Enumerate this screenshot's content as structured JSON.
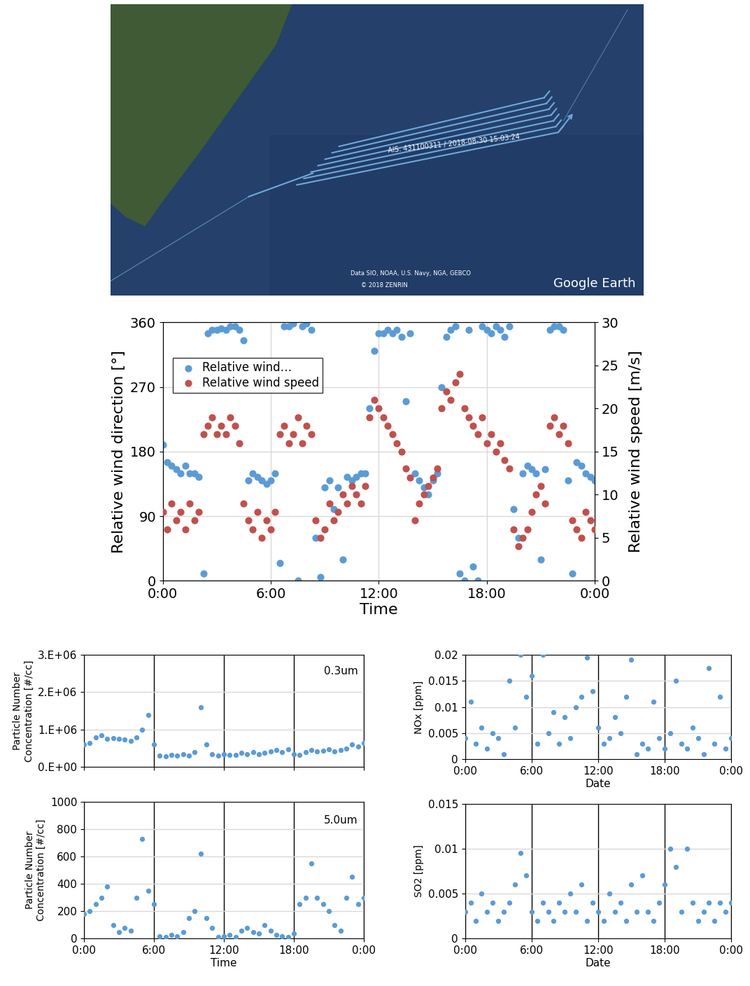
{
  "map": {
    "track_label": "AIS: 431100311 / 2018-08-30 15:03:24",
    "credit": "Data SIO, NOAA, U.S. Navy, NGA, GEBCO",
    "copyright": "© 2018 ZENRIN",
    "logo": "Google Earth"
  },
  "chart_data": [
    {
      "type": "scatter",
      "xlabel": "Time",
      "ylabel": "Relative wind direction [°]",
      "y2label": "Relative wind speed [m/s]",
      "x": [
        0,
        0.25,
        0.5,
        0.75,
        1,
        1.25,
        1.5,
        1.75,
        2,
        2.25,
        2.5,
        2.75,
        3,
        3.25,
        3.5,
        3.75,
        4,
        4.25,
        4.5,
        4.75,
        5,
        5.25,
        5.5,
        5.75,
        6,
        6.25,
        6.5,
        6.75,
        7,
        7.25,
        7.5,
        7.75,
        8,
        8.25,
        8.5,
        8.75,
        9,
        9.25,
        9.5,
        9.75,
        10,
        10.25,
        10.5,
        10.75,
        11,
        11.25,
        11.5,
        11.75,
        12,
        12.25,
        12.5,
        12.75,
        13,
        13.25,
        13.5,
        13.75,
        14,
        14.25,
        14.5,
        14.75,
        15,
        15.25,
        15.5,
        15.75,
        16,
        16.25,
        16.5,
        16.75,
        17,
        17.25,
        17.5,
        17.75,
        18,
        18.25,
        18.5,
        18.75,
        19,
        19.25,
        19.5,
        19.75,
        20,
        20.25,
        20.5,
        20.75,
        21,
        21.25,
        21.5,
        21.75,
        22,
        22.25,
        22.5,
        22.75,
        23,
        23.25,
        23.5,
        23.75,
        24
      ],
      "xlim": [
        0,
        24
      ],
      "xticks": [
        {
          "value": 0,
          "label": "0:00"
        },
        {
          "value": 6,
          "label": "6:00"
        },
        {
          "value": 12,
          "label": "12:00"
        },
        {
          "value": 18,
          "label": "18:00"
        },
        {
          "value": 24,
          "label": "0:00"
        }
      ],
      "ylim": [
        0,
        360
      ],
      "yticks": [
        0,
        90,
        180,
        270,
        360
      ],
      "y2lim": [
        0,
        30
      ],
      "y2ticks": [
        0,
        5,
        10,
        15,
        20,
        25,
        30
      ],
      "grid": true,
      "legend": "upper left",
      "marker": "o",
      "series": [
        {
          "name": "Relative wind…",
          "color": "#5b9bd5",
          "values": [
            190,
            165,
            160,
            155,
            150,
            160,
            150,
            150,
            145,
            10,
            345,
            350,
            350,
            352,
            350,
            355,
            355,
            350,
            335,
            140,
            150,
            145,
            140,
            135,
            140,
            150,
            25,
            355,
            355,
            358,
            0,
            355,
            358,
            350,
            60,
            5,
            130,
            140,
            100,
            130,
            30,
            145,
            140,
            145,
            150,
            150,
            240,
            320,
            345,
            345,
            350,
            345,
            350,
            340,
            250,
            345,
            150,
            140,
            130,
            120,
            140,
            150,
            270,
            340,
            350,
            355,
            10,
            0,
            350,
            20,
            0,
            355,
            350,
            345,
            355,
            350,
            340,
            355,
            100,
            60,
            150,
            160,
            155,
            150,
            30,
            155,
            350,
            355,
            355,
            350,
            140,
            10,
            165,
            160,
            150,
            145,
            140
          ]
        },
        {
          "name": "Relative wind speed",
          "color": "#c0504d",
          "axis": "y2",
          "values": [
            8,
            6,
            9,
            7,
            8,
            6,
            9,
            7,
            8,
            17,
            18,
            19,
            17,
            18,
            17,
            19,
            18,
            16,
            9,
            7,
            6,
            8,
            5,
            7,
            6,
            8,
            17,
            18,
            16,
            17,
            19,
            16,
            18,
            17,
            7,
            5,
            6,
            9,
            7,
            8,
            10,
            9,
            11,
            10,
            9,
            11,
            19,
            21,
            20,
            19,
            18,
            17,
            16,
            15,
            13,
            12,
            7,
            9,
            10,
            11,
            12,
            13,
            20,
            22,
            21,
            23,
            24,
            20,
            19,
            18,
            17,
            19,
            16,
            17,
            15,
            16,
            14,
            13,
            6,
            4,
            5,
            6,
            8,
            10,
            11,
            9,
            18,
            19,
            17,
            18,
            16,
            7,
            6,
            5,
            8,
            7,
            6
          ]
        }
      ]
    },
    {
      "type": "scatter",
      "ylabel": "Particle Number\nConcentration [#/cc]",
      "annotation": "0.3um",
      "x": [
        0,
        0.5,
        1,
        1.5,
        2,
        2.5,
        3,
        3.5,
        4,
        4.5,
        5,
        5.5,
        6,
        6.5,
        7,
        7.5,
        8,
        8.5,
        9,
        9.5,
        10,
        10.5,
        11,
        11.5,
        12,
        12.5,
        13,
        13.5,
        14,
        14.5,
        15,
        15.5,
        16,
        16.5,
        17,
        17.5,
        18,
        18.5,
        19,
        19.5,
        20,
        20.5,
        21,
        21.5,
        22,
        22.5,
        23,
        23.5,
        24
      ],
      "xlim": [
        0,
        24
      ],
      "xticks": [
        {
          "value": 0,
          "label": "0:00"
        },
        {
          "value": 6,
          "label": "6:00"
        },
        {
          "value": 12,
          "label": "12:00"
        },
        {
          "value": 18,
          "label": "18:00"
        },
        {
          "value": 24,
          "label": "0:00"
        }
      ],
      "ylim": [
        0,
        3000000
      ],
      "yticks": [
        {
          "value": 0,
          "label": "0.E+00"
        },
        {
          "value": 1000000,
          "label": "1.E+06"
        },
        {
          "value": 2000000,
          "label": "2.E+06"
        },
        {
          "value": 3000000,
          "label": "3.E+06"
        }
      ],
      "grid": true,
      "tick_labels": "y",
      "marker": "o",
      "series": [
        {
          "color": "#5b9bd5",
          "values": [
            600000,
            650000,
            800000,
            850000,
            750000,
            780000,
            760000,
            740000,
            700000,
            800000,
            1000000,
            1400000,
            600000,
            300000,
            280000,
            320000,
            300000,
            350000,
            300000,
            400000,
            1600000,
            600000,
            350000,
            300000,
            350000,
            320000,
            330000,
            380000,
            350000,
            400000,
            350000,
            380000,
            420000,
            450000,
            400000,
            480000,
            350000,
            320000,
            400000,
            450000,
            420000,
            430000,
            480000,
            420000,
            450000,
            500000,
            600000,
            550000,
            650000
          ]
        }
      ]
    },
    {
      "type": "scatter",
      "xlabel": "Time",
      "ylabel": "Particle Number\nConcentration [#/cc]",
      "annotation": "5.0um",
      "x": [
        0,
        0.5,
        1,
        1.5,
        2,
        2.5,
        3,
        3.5,
        4,
        4.5,
        5,
        5.5,
        6,
        6.5,
        7,
        7.5,
        8,
        8.5,
        9,
        9.5,
        10,
        10.5,
        11,
        11.5,
        12,
        12.5,
        13,
        13.5,
        14,
        14.5,
        15,
        15.5,
        16,
        16.5,
        17,
        17.5,
        18,
        18.5,
        19,
        19.5,
        20,
        20.5,
        21,
        21.5,
        22,
        22.5,
        23,
        23.5,
        24
      ],
      "xlim": [
        0,
        24
      ],
      "xticks": [
        {
          "value": 0,
          "label": "0:00"
        },
        {
          "value": 6,
          "label": "6:00"
        },
        {
          "value": 12,
          "label": "12:00"
        },
        {
          "value": 18,
          "label": "18:00"
        },
        {
          "value": 24,
          "label": "0:00"
        }
      ],
      "ylim": [
        0,
        1000
      ],
      "yticks": [
        0,
        200,
        400,
        600,
        800,
        1000
      ],
      "grid": true,
      "marker": "o",
      "series": [
        {
          "color": "#5b9bd5",
          "values": [
            180,
            200,
            250,
            300,
            380,
            100,
            50,
            80,
            60,
            300,
            730,
            350,
            250,
            20,
            10,
            30,
            20,
            50,
            150,
            200,
            620,
            150,
            80,
            10,
            20,
            30,
            10,
            60,
            80,
            50,
            40,
            100,
            60,
            30,
            20,
            10,
            40,
            250,
            300,
            550,
            300,
            250,
            200,
            100,
            60,
            300,
            450,
            250,
            300
          ]
        }
      ]
    },
    {
      "type": "scatter",
      "xlabel": "Date",
      "ylabel": "NOx [ppm]",
      "x": [
        0,
        0.5,
        1,
        1.5,
        2,
        2.5,
        3,
        3.5,
        4,
        4.5,
        5,
        5.5,
        6,
        6.5,
        7,
        7.5,
        8,
        8.5,
        9,
        9.5,
        10,
        10.5,
        11,
        11.5,
        12,
        12.5,
        13,
        13.5,
        14,
        14.5,
        15,
        15.5,
        16,
        16.5,
        17,
        17.5,
        18,
        18.5,
        19,
        19.5,
        20,
        20.5,
        21,
        21.5,
        22,
        22.5,
        23,
        23.5,
        24
      ],
      "xlim": [
        0,
        24
      ],
      "xticks": [
        {
          "value": 0,
          "label": "0:00"
        },
        {
          "value": 6,
          "label": "6:00"
        },
        {
          "value": 12,
          "label": "12:00"
        },
        {
          "value": 18,
          "label": "18:00"
        },
        {
          "value": 24,
          "label": "0:00"
        }
      ],
      "ylim": [
        0,
        0.02
      ],
      "yticks": [
        0,
        0.005,
        0.01,
        0.015,
        0.02
      ],
      "grid": true,
      "marker": "o",
      "series": [
        {
          "color": "#5b9bd5",
          "values": [
            0.004,
            0.011,
            0.003,
            0.006,
            0.002,
            0.005,
            0.004,
            0.001,
            0.015,
            0.006,
            0.02,
            0.012,
            0.016,
            0.003,
            0.02,
            0.005,
            0.009,
            0.003,
            0.008,
            0.004,
            0.01,
            0.012,
            0.0195,
            0.013,
            0.006,
            0.003,
            0.004,
            0.008,
            0.005,
            0.012,
            0.019,
            0.001,
            0.003,
            0.002,
            0.011,
            0.004,
            0.002,
            0.005,
            0.015,
            0.003,
            0.002,
            0.006,
            0.004,
            0.001,
            0.0175,
            0.003,
            0.012,
            0.002,
            0.004
          ]
        }
      ]
    },
    {
      "type": "scatter",
      "xlabel": "Date",
      "ylabel": "SO2 [ppm]",
      "x": [
        0,
        0.5,
        1,
        1.5,
        2,
        2.5,
        3,
        3.5,
        4,
        4.5,
        5,
        5.5,
        6,
        6.5,
        7,
        7.5,
        8,
        8.5,
        9,
        9.5,
        10,
        10.5,
        11,
        11.5,
        12,
        12.5,
        13,
        13.5,
        14,
        14.5,
        15,
        15.5,
        16,
        16.5,
        17,
        17.5,
        18,
        18.5,
        19,
        19.5,
        20,
        20.5,
        21,
        21.5,
        22,
        22.5,
        23,
        23.5,
        24
      ],
      "xlim": [
        0,
        24
      ],
      "xticks": [
        {
          "value": 0,
          "label": "0:00"
        },
        {
          "value": 6,
          "label": "6:00"
        },
        {
          "value": 12,
          "label": "12:00"
        },
        {
          "value": 18,
          "label": "18:00"
        },
        {
          "value": 24,
          "label": "0:00"
        }
      ],
      "ylim": [
        0,
        0.015
      ],
      "yticks": [
        0,
        0.005,
        0.01,
        0.015
      ],
      "grid": true,
      "marker": "o",
      "series": [
        {
          "color": "#5b9bd5",
          "values": [
            0.003,
            0.004,
            0.002,
            0.005,
            0.003,
            0.004,
            0.002,
            0.003,
            0.004,
            0.006,
            0.0095,
            0.007,
            0.003,
            0.002,
            0.004,
            0.003,
            0.002,
            0.004,
            0.003,
            0.005,
            0.003,
            0.006,
            0.002,
            0.004,
            0.003,
            0.002,
            0.005,
            0.003,
            0.004,
            0.002,
            0.006,
            0.003,
            0.007,
            0.003,
            0.002,
            0.004,
            0.006,
            0.01,
            0.008,
            0.003,
            0.01,
            0.004,
            0.002,
            0.003,
            0.004,
            0.002,
            0.004,
            0.003,
            0.004
          ]
        }
      ]
    }
  ]
}
